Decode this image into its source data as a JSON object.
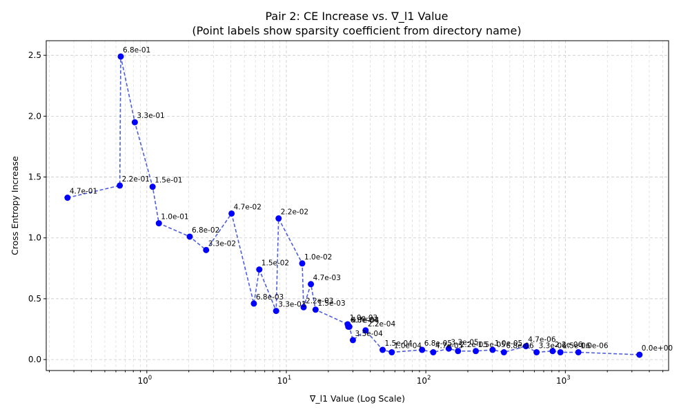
{
  "chart_data": {
    "type": "scatter",
    "title": "Pair 2: CE Increase vs. ∇_l1 Value",
    "subtitle": "(Point labels show sparsity coefficient from directory name)",
    "xlabel": "∇_l1 Value (Log Scale)",
    "ylabel": "Cross Entropy Increase",
    "x_scale": "log",
    "xlim": [
      0.19,
      5500
    ],
    "ylim": [
      -0.09,
      2.62
    ],
    "grid": true,
    "x_ticks": [
      {
        "value": 1,
        "label": "10",
        "exp": "0"
      },
      {
        "value": 10,
        "label": "10",
        "exp": "1"
      },
      {
        "value": 100,
        "label": "10",
        "exp": "2"
      },
      {
        "value": 1000,
        "label": "10",
        "exp": "3"
      }
    ],
    "y_ticks": [
      {
        "value": 0,
        "label": "0.0"
      },
      {
        "value": 0.5,
        "label": "0.5"
      },
      {
        "value": 1.0,
        "label": "1.0"
      },
      {
        "value": 1.5,
        "label": "1.5"
      },
      {
        "value": 2.0,
        "label": "2.0"
      },
      {
        "value": 2.5,
        "label": "2.5"
      }
    ],
    "series": [
      {
        "color": "#0000ff",
        "line_color": "#3a4bdc",
        "line_style": "dashed",
        "points": [
          {
            "x": 0.27,
            "y": 1.33,
            "label": "4.7e-01"
          },
          {
            "x": 0.64,
            "y": 1.43,
            "label": "2.2e-01"
          },
          {
            "x": 0.65,
            "y": 2.49,
            "label": "6.8e-01"
          },
          {
            "x": 0.82,
            "y": 1.95,
            "label": "3.3e-01"
          },
          {
            "x": 1.1,
            "y": 1.42,
            "label": "1.5e-01"
          },
          {
            "x": 1.22,
            "y": 1.12,
            "label": "1.0e-01"
          },
          {
            "x": 2.03,
            "y": 1.01,
            "label": "6.8e-02"
          },
          {
            "x": 2.66,
            "y": 0.9,
            "label": "3.3e-02"
          },
          {
            "x": 4.05,
            "y": 1.2,
            "label": "4.7e-02"
          },
          {
            "x": 5.85,
            "y": 0.46,
            "label": "6.8e-03"
          },
          {
            "x": 6.4,
            "y": 0.74,
            "label": "1.5e-02"
          },
          {
            "x": 8.45,
            "y": 0.4,
            "label": "3.3e-03"
          },
          {
            "x": 8.8,
            "y": 1.16,
            "label": "2.2e-02"
          },
          {
            "x": 13.0,
            "y": 0.79,
            "label": "1.0e-02"
          },
          {
            "x": 13.3,
            "y": 0.43,
            "label": "2.2e-03"
          },
          {
            "x": 15.0,
            "y": 0.62,
            "label": "4.7e-03"
          },
          {
            "x": 16.2,
            "y": 0.41,
            "label": "1.5e-03"
          },
          {
            "x": 27.5,
            "y": 0.29,
            "label": "1.0e-03"
          },
          {
            "x": 27.8,
            "y": 0.27,
            "label": "6.8e-04"
          },
          {
            "x": 28.3,
            "y": 0.27,
            "label": "4.7e-04"
          },
          {
            "x": 30.0,
            "y": 0.16,
            "label": "3.3e-04"
          },
          {
            "x": 37.0,
            "y": 0.24,
            "label": "2.2e-04"
          },
          {
            "x": 49.0,
            "y": 0.08,
            "label": "1.5e-04"
          },
          {
            "x": 57.0,
            "y": 0.06,
            "label": "1.0e-04"
          },
          {
            "x": 94.0,
            "y": 0.08,
            "label": "6.8e-05"
          },
          {
            "x": 113.0,
            "y": 0.06,
            "label": "4.7e-05"
          },
          {
            "x": 146.0,
            "y": 0.09,
            "label": "3.3e-05"
          },
          {
            "x": 170.0,
            "y": 0.07,
            "label": "2.2e-05"
          },
          {
            "x": 228.0,
            "y": 0.07,
            "label": "1.5e-05"
          },
          {
            "x": 301.0,
            "y": 0.08,
            "label": "1.0e-05"
          },
          {
            "x": 363.0,
            "y": 0.06,
            "label": "6.8e-06"
          },
          {
            "x": 522.0,
            "y": 0.11,
            "label": "4.7e-06"
          },
          {
            "x": 622.0,
            "y": 0.06,
            "label": "3.3e-06"
          },
          {
            "x": 811.0,
            "y": 0.07,
            "label": "2.2e-06"
          },
          {
            "x": 922.0,
            "y": 0.06,
            "label": "1.5e-06"
          },
          {
            "x": 1240.0,
            "y": 0.06,
            "label": "1.0e-06"
          },
          {
            "x": 3400.0,
            "y": 0.04,
            "label": "0.0e+00"
          }
        ]
      }
    ]
  }
}
